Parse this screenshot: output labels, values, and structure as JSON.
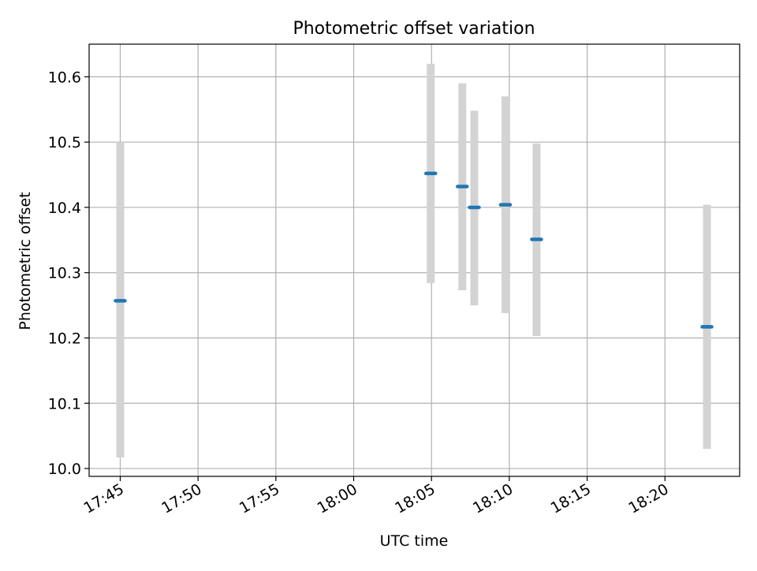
{
  "chart_data": {
    "type": "scatter",
    "title": "Photometric offset variation",
    "xlabel": "UTC time",
    "ylabel": "Photometric offset",
    "x_axis": {
      "kind": "time",
      "range": [
        "17:43",
        "18:24.8"
      ],
      "ticks": [
        "17:45",
        "17:50",
        "17:55",
        "18:00",
        "18:05",
        "18:10",
        "18:15",
        "18:20"
      ]
    },
    "y_axis": {
      "range": [
        9.988,
        10.65
      ],
      "ticks": [
        "10.0",
        "10.1",
        "10.2",
        "10.3",
        "10.4",
        "10.5",
        "10.6"
      ]
    },
    "grid": true,
    "colors": {
      "marker": "#1f77b4",
      "errorbar": "#d3d3d3",
      "grid": "#b0b0b0"
    },
    "points": [
      {
        "time": "17:45.00",
        "value": 10.257,
        "err_low": 10.017,
        "err_high": 10.5
      },
      {
        "time": "18:04.95",
        "value": 10.452,
        "err_low": 10.284,
        "err_high": 10.62
      },
      {
        "time": "18:06.98",
        "value": 10.432,
        "err_low": 10.273,
        "err_high": 10.59
      },
      {
        "time": "18:07.75",
        "value": 10.4,
        "err_low": 10.25,
        "err_high": 10.548
      },
      {
        "time": "18:09.75",
        "value": 10.404,
        "err_low": 10.238,
        "err_high": 10.57
      },
      {
        "time": "18:11.75",
        "value": 10.351,
        "err_low": 10.203,
        "err_high": 10.498
      },
      {
        "time": "18:22.70",
        "value": 10.217,
        "err_low": 10.03,
        "err_high": 10.404
      }
    ]
  }
}
